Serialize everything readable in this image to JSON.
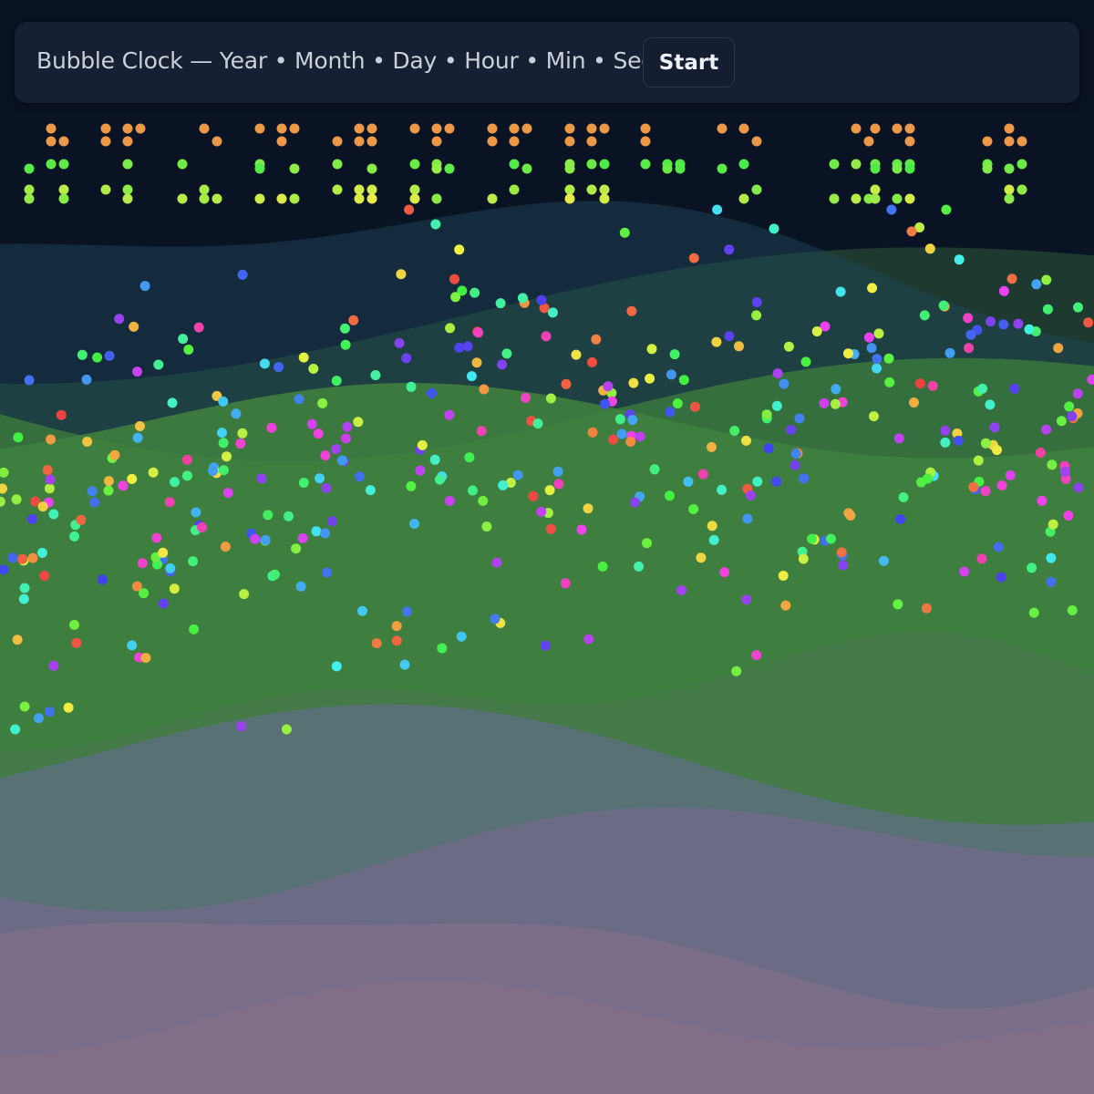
{
  "header": {
    "title": "Bubble Clock — Year • Month • Day • Hour • Min • Sec",
    "button": "Start"
  }
}
